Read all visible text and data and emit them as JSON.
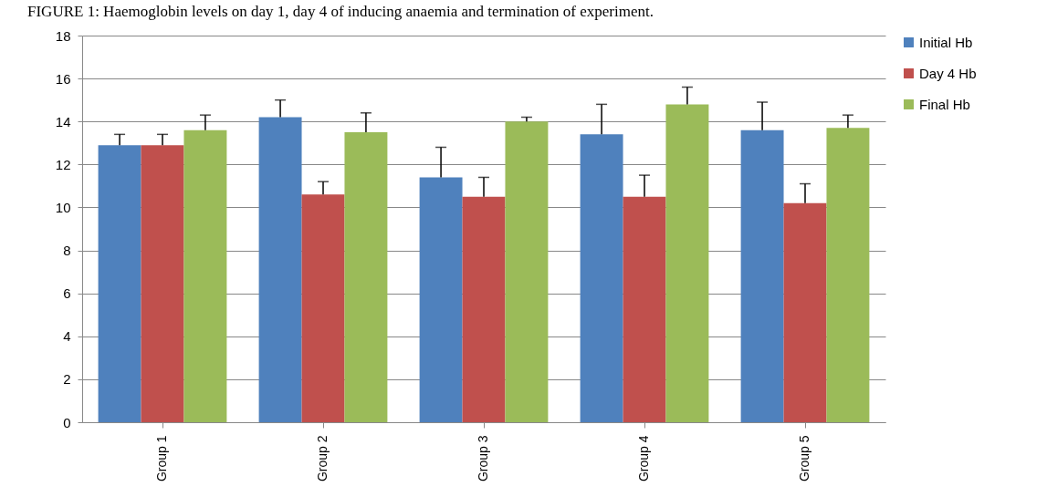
{
  "chart_data": {
    "type": "bar",
    "title": "FIGURE 1: Haemoglobin levels on day 1, day 4 of inducing anaemia and termination of experiment.",
    "categories": [
      "Group 1",
      "Group 2",
      "Group 3",
      "Group 4",
      "Group 5"
    ],
    "series": [
      {
        "name": "Initial  Hb",
        "color": "#4f81bd",
        "values": [
          12.9,
          14.2,
          11.4,
          13.4,
          13.6
        ],
        "errors": [
          [
            12.9,
            13.4
          ],
          [
            14.2,
            15.0
          ],
          [
            11.4,
            12.8
          ],
          [
            13.4,
            14.8
          ],
          [
            13.6,
            14.9
          ]
        ]
      },
      {
        "name": "Day 4 Hb",
        "color": "#c0504d",
        "values": [
          12.9,
          10.6,
          10.5,
          10.5,
          10.2
        ],
        "errors": [
          [
            12.9,
            13.4
          ],
          [
            10.6,
            11.2
          ],
          [
            10.5,
            11.4
          ],
          [
            10.5,
            11.5
          ],
          [
            10.2,
            11.1
          ]
        ]
      },
      {
        "name": "Final Hb",
        "color": "#9bbb59",
        "values": [
          13.6,
          13.5,
          14.0,
          14.8,
          13.7
        ],
        "errors": [
          [
            13.6,
            14.3
          ],
          [
            13.5,
            14.4
          ],
          [
            14.0,
            14.2
          ],
          [
            14.8,
            15.6
          ],
          [
            13.7,
            14.3
          ]
        ]
      }
    ],
    "ylim": [
      0,
      18
    ],
    "yticks": [
      0,
      2,
      4,
      6,
      8,
      10,
      12,
      14,
      16,
      18
    ],
    "grid": "y",
    "legend": "right"
  }
}
